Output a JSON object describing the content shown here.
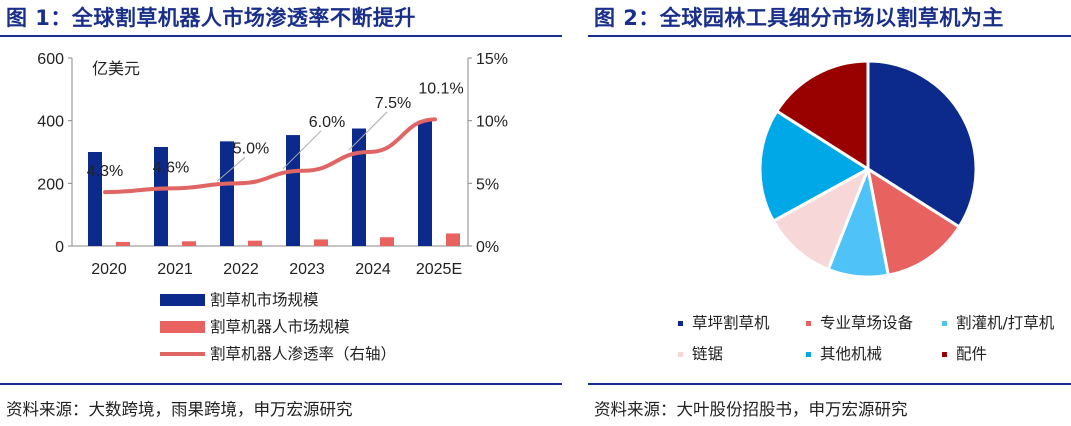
{
  "left_panel": {
    "title": "图 1：全球割草机器人市场渗透率不断提升",
    "source": "资料来源：大数跨境，雨果跨境，申万宏源研究"
  },
  "right_panel": {
    "title": "图 2：全球园林工具细分市场以割草机为主",
    "source": "资料来源：大叶股份招股书，申万宏源研究"
  },
  "chart_data": [
    {
      "type": "bar",
      "title": "全球割草机器人市场渗透率不断提升",
      "unit_label": "亿美元",
      "categories": [
        "2020",
        "2021",
        "2022",
        "2023",
        "2024",
        "2025E"
      ],
      "ylim": [
        0,
        600
      ],
      "yticks": [
        "0",
        "200",
        "400",
        "600"
      ],
      "y2lim": [
        0,
        15
      ],
      "y2ticks": [
        "0%",
        "5%",
        "10%",
        "15%"
      ],
      "series": [
        {
          "name": "割草机市场规模",
          "kind": "bar",
          "axis": "left",
          "color": "#0b2a8c",
          "values": [
            300,
            316,
            334,
            354,
            375,
            398
          ]
        },
        {
          "name": "割草机器人市场规模",
          "kind": "bar",
          "axis": "left",
          "color": "#e8625f",
          "values": [
            13,
            15,
            17,
            21,
            28,
            40
          ]
        },
        {
          "name": "割草机器人渗透率（右轴）",
          "kind": "line",
          "axis": "right",
          "color": "#e06666",
          "values": [
            4.3,
            4.6,
            5.0,
            6.0,
            7.5,
            10.1
          ],
          "labels": [
            "4.3%",
            "4.6%",
            "5.0%",
            "6.0%",
            "7.5%",
            "10.1%"
          ]
        }
      ],
      "grid": false,
      "legend_position": "bottom"
    },
    {
      "type": "pie",
      "title": "全球园林工具细分市场以割草机为主",
      "slices": [
        {
          "name": "草坪割草机",
          "value": 34,
          "color": "#0b2a8c"
        },
        {
          "name": "专业草场设备",
          "value": 13,
          "color": "#e8625f"
        },
        {
          "name": "割灌机/打草机",
          "value": 9,
          "color": "#4fc3f7"
        },
        {
          "name": "链锯",
          "value": 11,
          "color": "#f8d7d8"
        },
        {
          "name": "其他机械",
          "value": 17,
          "color": "#00a8e8"
        },
        {
          "name": "配件",
          "value": 16,
          "color": "#990000"
        }
      ],
      "legend_position": "bottom"
    }
  ]
}
